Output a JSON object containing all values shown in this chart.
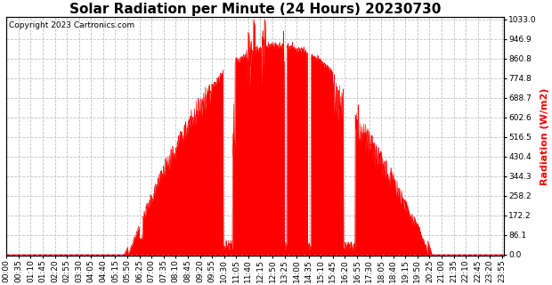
{
  "title": "Solar Radiation per Minute (24 Hours) 20230730",
  "ylabel": "Radiation (W/m2)",
  "copyright": "Copyright 2023 Cartronics.com",
  "fill_color": "#FF0000",
  "line_color": "#FF0000",
  "bg_color": "#FFFFFF",
  "grid_color": "#BBBBBB",
  "title_fontsize": 11,
  "label_fontsize": 8,
  "tick_fontsize": 6.5,
  "yticks": [
    0.0,
    86.1,
    172.2,
    258.2,
    344.3,
    430.4,
    516.5,
    602.6,
    688.7,
    774.8,
    860.8,
    946.9,
    1033.0
  ],
  "ymax": 1033.0,
  "ymin": 0.0,
  "xtick_labels": [
    "00:00",
    "00:35",
    "01:10",
    "01:45",
    "02:20",
    "02:55",
    "03:30",
    "04:05",
    "04:40",
    "05:15",
    "05:50",
    "06:25",
    "07:00",
    "07:35",
    "08:10",
    "08:45",
    "09:20",
    "09:55",
    "10:30",
    "11:05",
    "11:40",
    "12:15",
    "12:50",
    "13:25",
    "14:00",
    "14:35",
    "15:10",
    "15:45",
    "16:20",
    "16:55",
    "17:30",
    "18:05",
    "18:40",
    "19:15",
    "19:50",
    "20:25",
    "21:00",
    "21:35",
    "22:10",
    "22:45",
    "23:20",
    "23:55"
  ]
}
